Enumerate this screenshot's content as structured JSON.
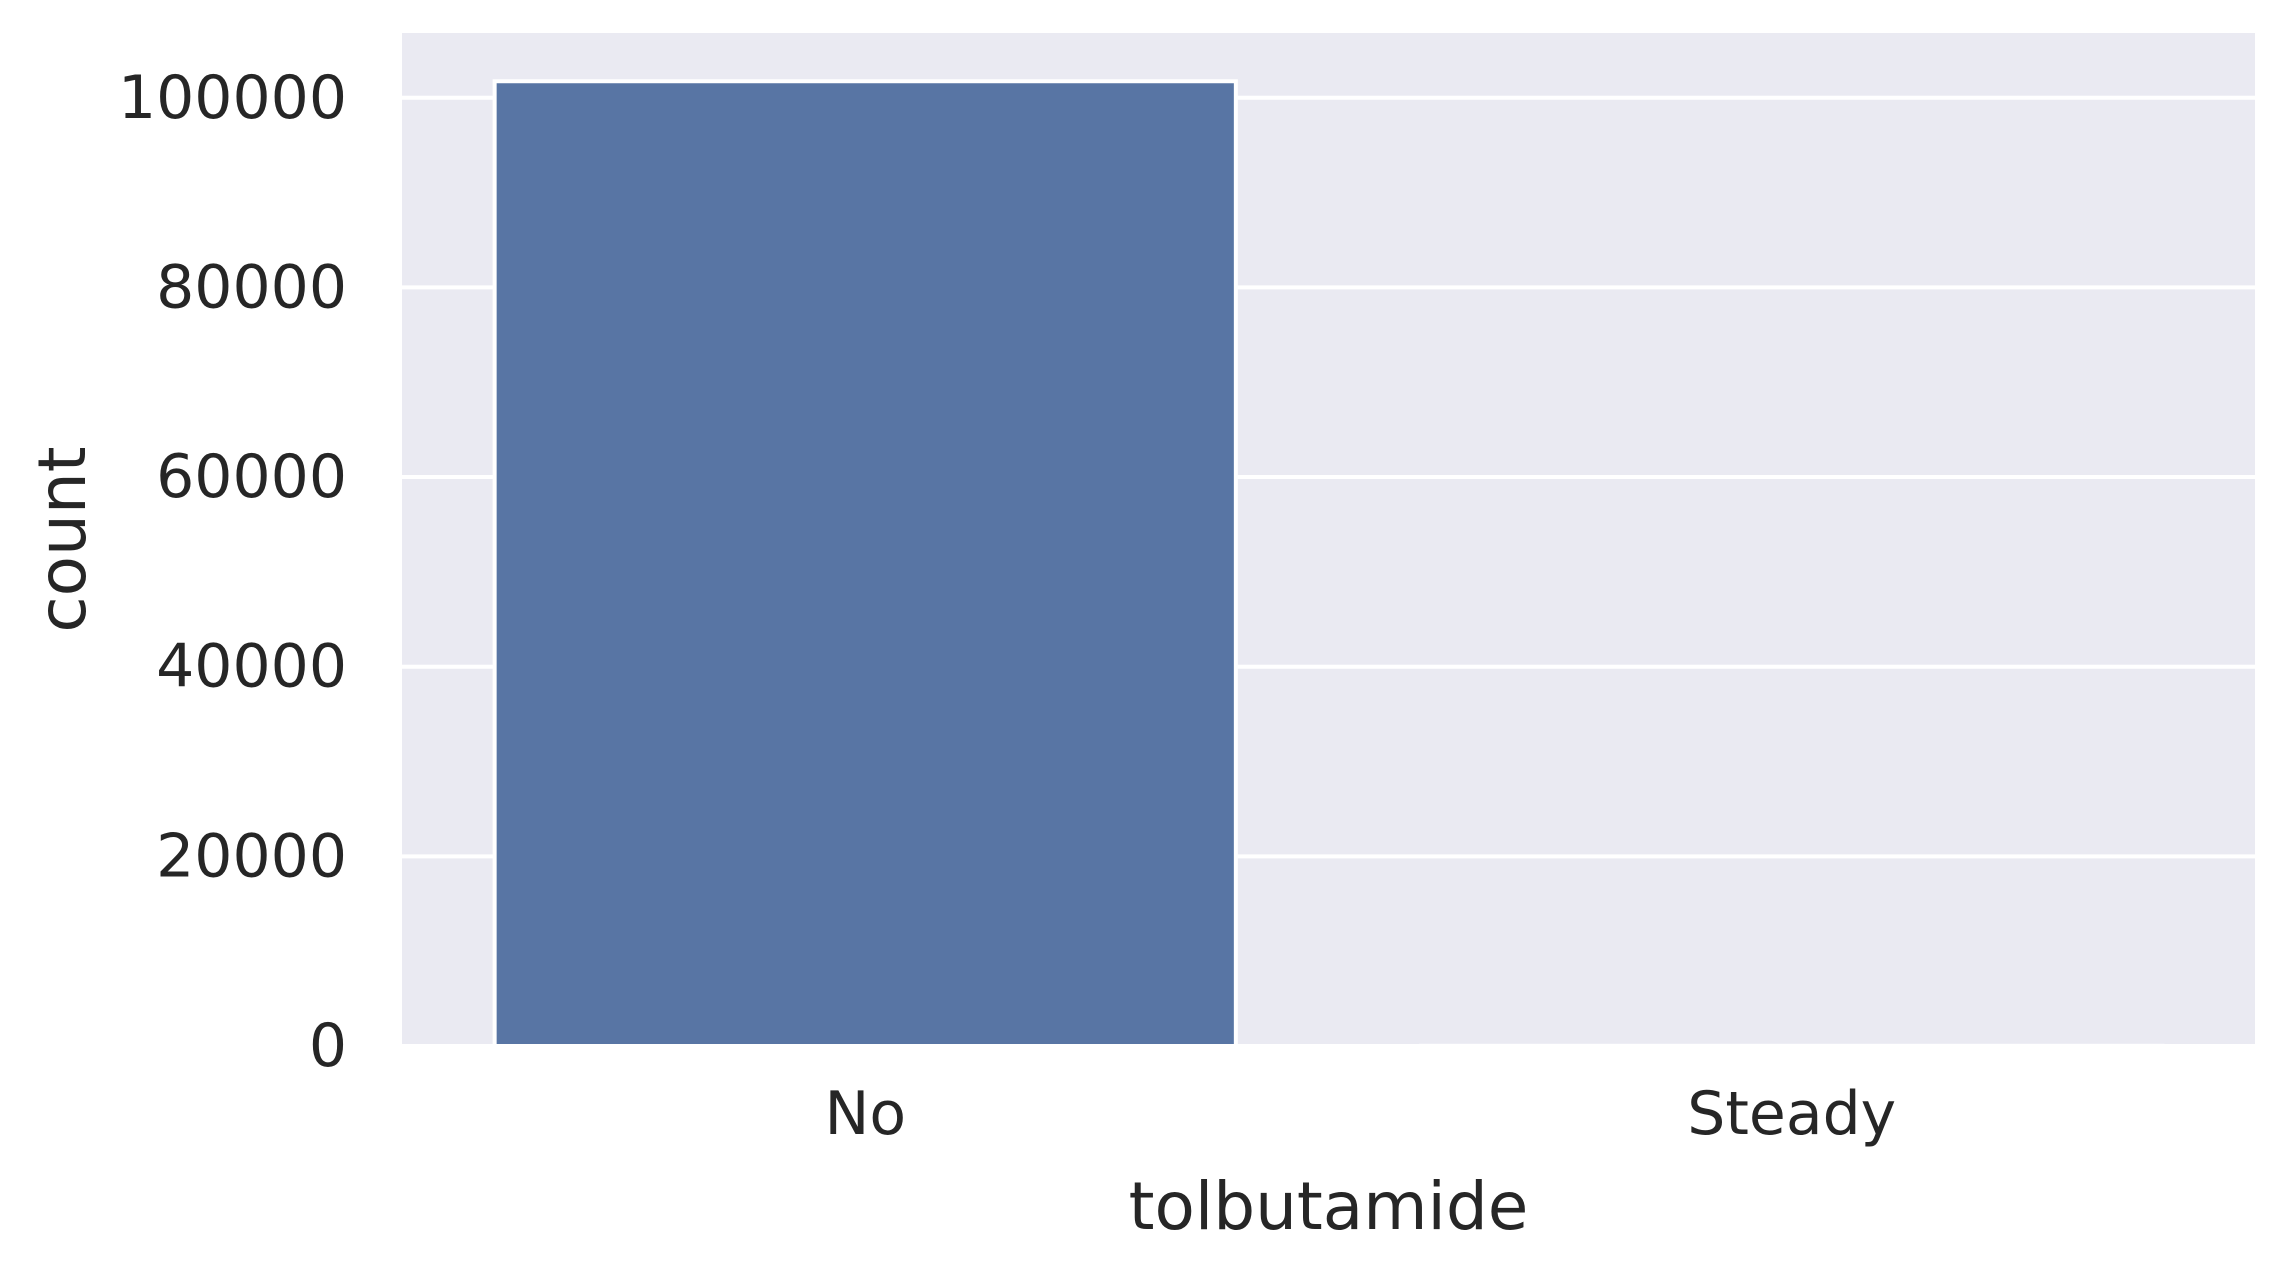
{
  "chart_data": {
    "type": "bar",
    "title": "",
    "xlabel": "tolbutamide",
    "ylabel": "count",
    "categories": [
      "No",
      "Steady"
    ],
    "values": [
      101743,
      23
    ],
    "ylim": [
      0,
      106830
    ],
    "yticks": [
      0,
      20000,
      40000,
      60000,
      80000,
      100000
    ],
    "ytick_labels": [
      "0",
      "20000",
      "40000",
      "60000",
      "80000",
      "100000"
    ],
    "grid": true,
    "legend": "none",
    "colors": {
      "background": "#eaeaf2",
      "grid": "#ffffff",
      "bar": "#5875a4",
      "bar_edge": "#ffffff",
      "text": "#262626"
    }
  }
}
